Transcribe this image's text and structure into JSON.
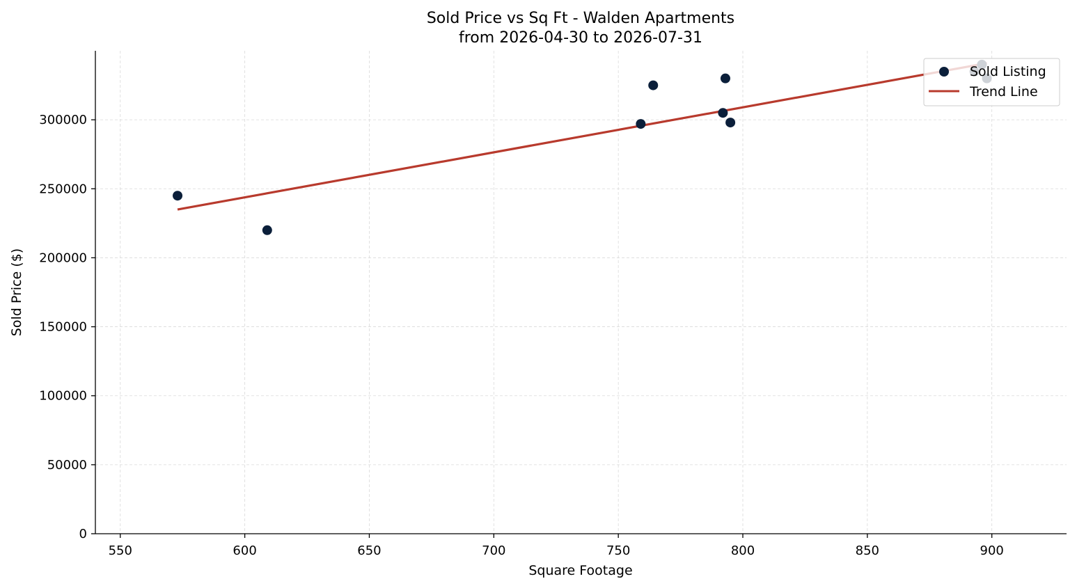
{
  "chart_data": {
    "type": "scatter",
    "title": "Sold Price vs Sq Ft - Walden Apartments",
    "subtitle": "from 2026-04-30 to 2026-07-31",
    "xlabel": "Square Footage",
    "ylabel": "Sold Price ($)",
    "xlim": [
      540,
      930
    ],
    "ylim": [
      0,
      350000
    ],
    "xticks": [
      550,
      600,
      650,
      700,
      750,
      800,
      850,
      900
    ],
    "yticks": [
      0,
      50000,
      100000,
      150000,
      200000,
      250000,
      300000
    ],
    "grid": true,
    "legend_position": "top-right",
    "series": [
      {
        "name": "Sold Listing",
        "kind": "scatter",
        "color": "#0b1f3a",
        "points": [
          {
            "x": 573,
            "y": 245000
          },
          {
            "x": 609,
            "y": 220000
          },
          {
            "x": 759,
            "y": 297000
          },
          {
            "x": 764,
            "y": 325000
          },
          {
            "x": 792,
            "y": 305000
          },
          {
            "x": 793,
            "y": 330000
          },
          {
            "x": 795,
            "y": 298000
          },
          {
            "x": 893,
            "y": 335000
          },
          {
            "x": 896,
            "y": 340000
          },
          {
            "x": 898,
            "y": 330000
          }
        ]
      },
      {
        "name": "Trend Line",
        "kind": "line",
        "color": "#b83a2d",
        "points": [
          {
            "x": 573,
            "y": 235000
          },
          {
            "x": 898,
            "y": 341000
          }
        ]
      }
    ]
  }
}
